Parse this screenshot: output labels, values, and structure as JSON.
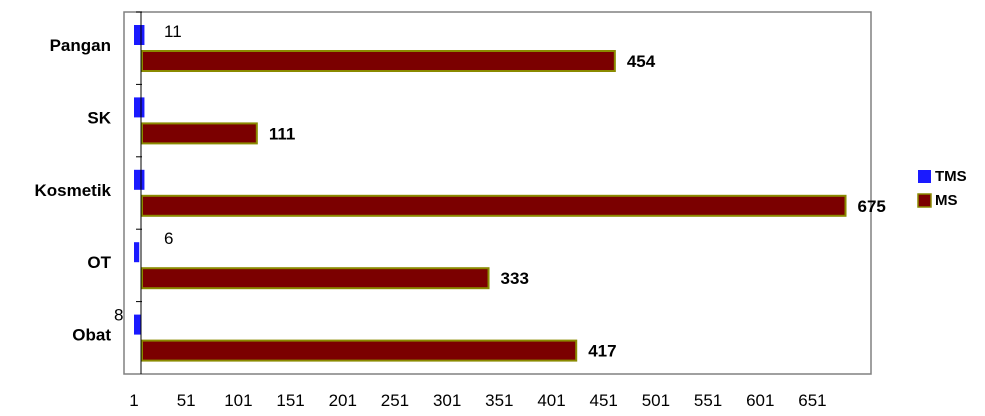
{
  "chart_data": {
    "type": "bar",
    "orientation": "horizontal",
    "categories": [
      "Pangan",
      "SK",
      "Kosmetik",
      "OT",
      "Obat"
    ],
    "series": [
      {
        "name": "TMS",
        "values": [
          11,
          11,
          11,
          6,
          8
        ],
        "color": "#1a1aff",
        "labels": [
          "11",
          "",
          "",
          "6",
          "8"
        ]
      },
      {
        "name": "MS",
        "values": [
          454,
          111,
          675,
          333,
          417
        ],
        "color": "#7b0000",
        "edge_color": "#8a8a00",
        "labels": [
          "454",
          "111",
          "675",
          "333",
          "417"
        ]
      }
    ],
    "x_ticks": [
      "1",
      "51",
      "101",
      "151",
      "201",
      "251",
      "301",
      "351",
      "401",
      "451",
      "501",
      "551",
      "601",
      "651"
    ],
    "xlim": [
      1,
      686
    ],
    "grid": false,
    "legend_position": "right"
  }
}
